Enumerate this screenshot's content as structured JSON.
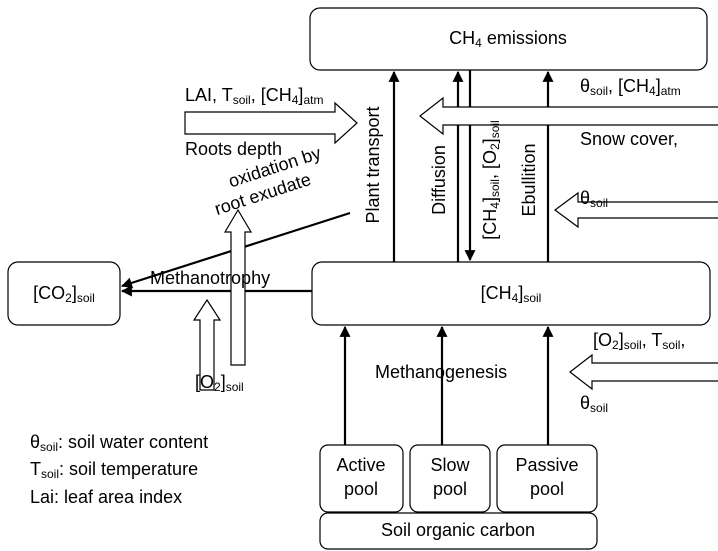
{
  "nodes": [
    {
      "lines": [
        [
          "CH",
          {
            "sub": "4"
          },
          " emissions"
        ]
      ]
    },
    {
      "lines": [
        [
          "[CH",
          {
            "sub": "4"
          },
          "]",
          {
            "sub": "soil"
          }
        ]
      ]
    },
    {
      "lines": [
        [
          "[CO",
          {
            "sub": "2"
          },
          "]",
          {
            "sub": "soil"
          }
        ]
      ]
    },
    {
      "lines": [
        [
          "Active"
        ],
        [
          "pool"
        ]
      ]
    },
    {
      "lines": [
        [
          "Slow"
        ],
        [
          "pool"
        ]
      ]
    },
    {
      "lines": [
        [
          "Passive"
        ],
        [
          "pool"
        ]
      ]
    },
    {
      "lines": [
        [
          "Soil organic carbon"
        ]
      ]
    }
  ],
  "labels": [
    {
      "lines": [
        [
          "LAI, T",
          {
            "sub": "soil"
          },
          ", [CH",
          {
            "sub": "4"
          },
          "]",
          {
            "sub": "atm"
          }
        ]
      ]
    },
    {
      "lines": [
        [
          "Roots depth"
        ]
      ]
    },
    {
      "lines": [
        [
          "oxidation by"
        ]
      ]
    },
    {
      "lines": [
        [
          "root exudate"
        ]
      ]
    },
    {
      "lines": [
        [
          "Plant transport"
        ]
      ]
    },
    {
      "lines": [
        [
          "Diffusion"
        ]
      ]
    },
    {
      "lines": [
        [
          "[CH",
          {
            "sub": "4"
          },
          "]",
          {
            "sub": "soil"
          },
          ", [O",
          {
            "sub": "2"
          },
          "]",
          {
            "sub": "soil"
          }
        ]
      ]
    },
    {
      "lines": [
        [
          "Ebullition"
        ]
      ]
    },
    {
      "lines": [
        [
          "θ",
          {
            "sub": "soil"
          },
          ", [CH",
          {
            "sub": "4"
          },
          "]",
          {
            "sub": "atm"
          }
        ]
      ]
    },
    {
      "lines": [
        [
          "Snow cover,"
        ]
      ]
    },
    {
      "lines": [
        [
          "θ",
          {
            "sub": "soil"
          }
        ]
      ]
    },
    {
      "lines": [
        [
          "Methanotrophy"
        ]
      ]
    },
    {
      "lines": [
        [
          "[O",
          {
            "sub": "2"
          },
          "]",
          {
            "sub": "soil"
          }
        ]
      ]
    },
    {
      "lines": [
        [
          "[O",
          {
            "sub": "2"
          },
          "]",
          {
            "sub": "soil"
          },
          ", T",
          {
            "sub": "soil"
          },
          ","
        ]
      ]
    },
    {
      "lines": [
        [
          "θ",
          {
            "sub": "soil"
          }
        ]
      ]
    },
    {
      "lines": [
        [
          "Methanogenesis"
        ]
      ]
    }
  ],
  "legend": [
    {
      "lines": [
        [
          "θ",
          {
            "sub": "soil"
          },
          ": soil water content"
        ]
      ]
    },
    {
      "lines": [
        [
          "T",
          {
            "sub": "soil"
          },
          ": soil temperature"
        ]
      ]
    },
    {
      "lines": [
        [
          "Lai: leaf area index"
        ]
      ]
    }
  ]
}
